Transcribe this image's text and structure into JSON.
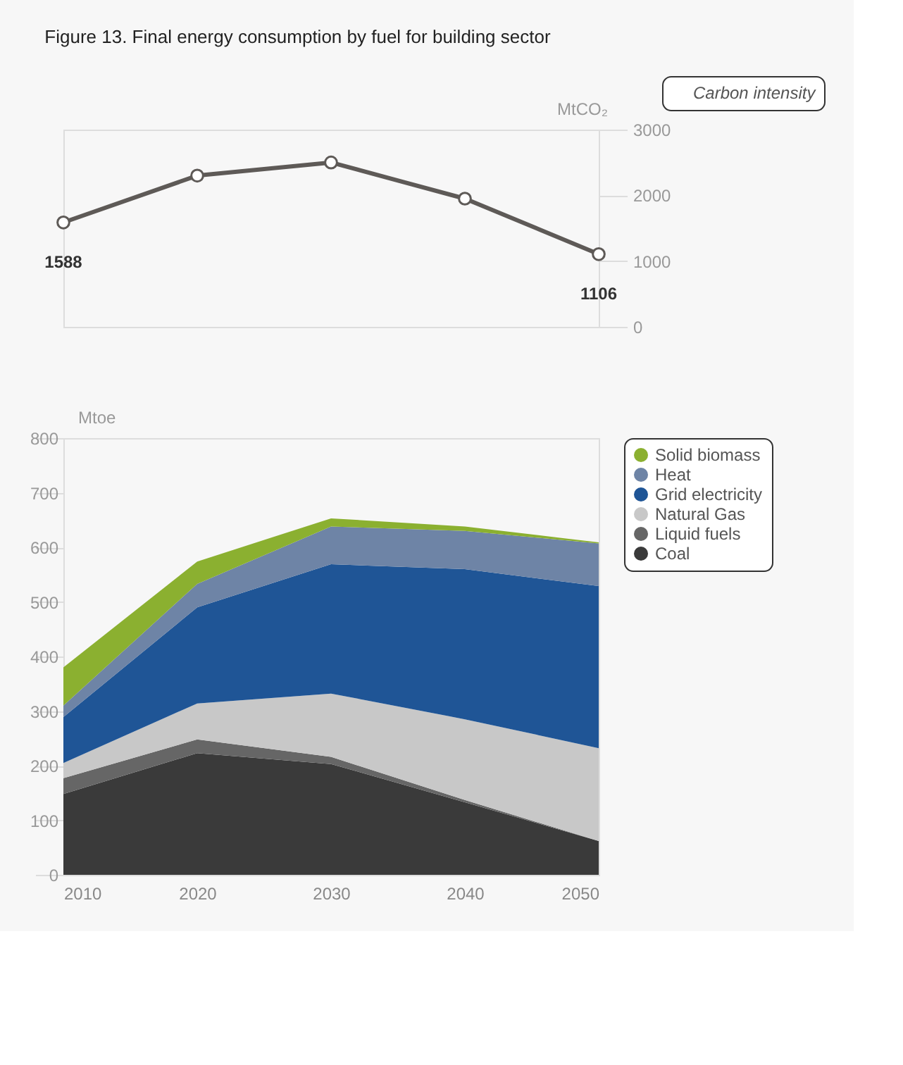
{
  "chart_data": [
    {
      "type": "line",
      "title": "Figure 13. Final energy consumption by fuel for building sector",
      "ylabel": "MtCO₂",
      "x": [
        2010,
        2020,
        2030,
        2040,
        2050
      ],
      "xlim": [
        2010,
        2050
      ],
      "ylim": [
        0,
        3000
      ],
      "yticks": [
        0,
        1000,
        2000,
        3000
      ],
      "legend_title": null,
      "tick_labels": "y",
      "grid": false,
      "legend": "top right",
      "marker": "circle",
      "line_style": "solid",
      "series": [
        {
          "name": "Carbon intensity",
          "color": "#5e5a57",
          "values": [
            1588,
            2300,
            2500,
            1950,
            1106
          ],
          "value_labels": [
            "1588",
            null,
            null,
            null,
            "1106"
          ]
        }
      ]
    },
    {
      "type": "area",
      "stacked": true,
      "ylabel": "Mtoe",
      "x": [
        2010,
        2020,
        2030,
        2040,
        2050
      ],
      "xlim": [
        2010,
        2050
      ],
      "xticks": [
        2010,
        2020,
        2030,
        2040,
        2050
      ],
      "ylim": [
        0,
        800
      ],
      "yticks": [
        0,
        100,
        200,
        300,
        400,
        500,
        600,
        700,
        800
      ],
      "grid": false,
      "legend": "right",
      "series": [
        {
          "name": "Coal",
          "color": "#3a3a3a",
          "values": [
            148,
            223,
            203,
            133,
            62
          ]
        },
        {
          "name": "Liquid fuels",
          "color": "#666666",
          "values": [
            29,
            25,
            13,
            4,
            0
          ]
        },
        {
          "name": "Natural Gas",
          "color": "#c8c8c8",
          "values": [
            28,
            66,
            116,
            148,
            170
          ]
        },
        {
          "name": "Grid electricity",
          "color": "#1f5596",
          "values": [
            84,
            176,
            237,
            275,
            297
          ]
        },
        {
          "name": "Heat",
          "color": "#6e84a6",
          "values": [
            21,
            43,
            69,
            70,
            78
          ]
        },
        {
          "name": "Solid biomass",
          "color": "#8bb030",
          "values": [
            70,
            41,
            15,
            8,
            2
          ]
        }
      ]
    }
  ]
}
